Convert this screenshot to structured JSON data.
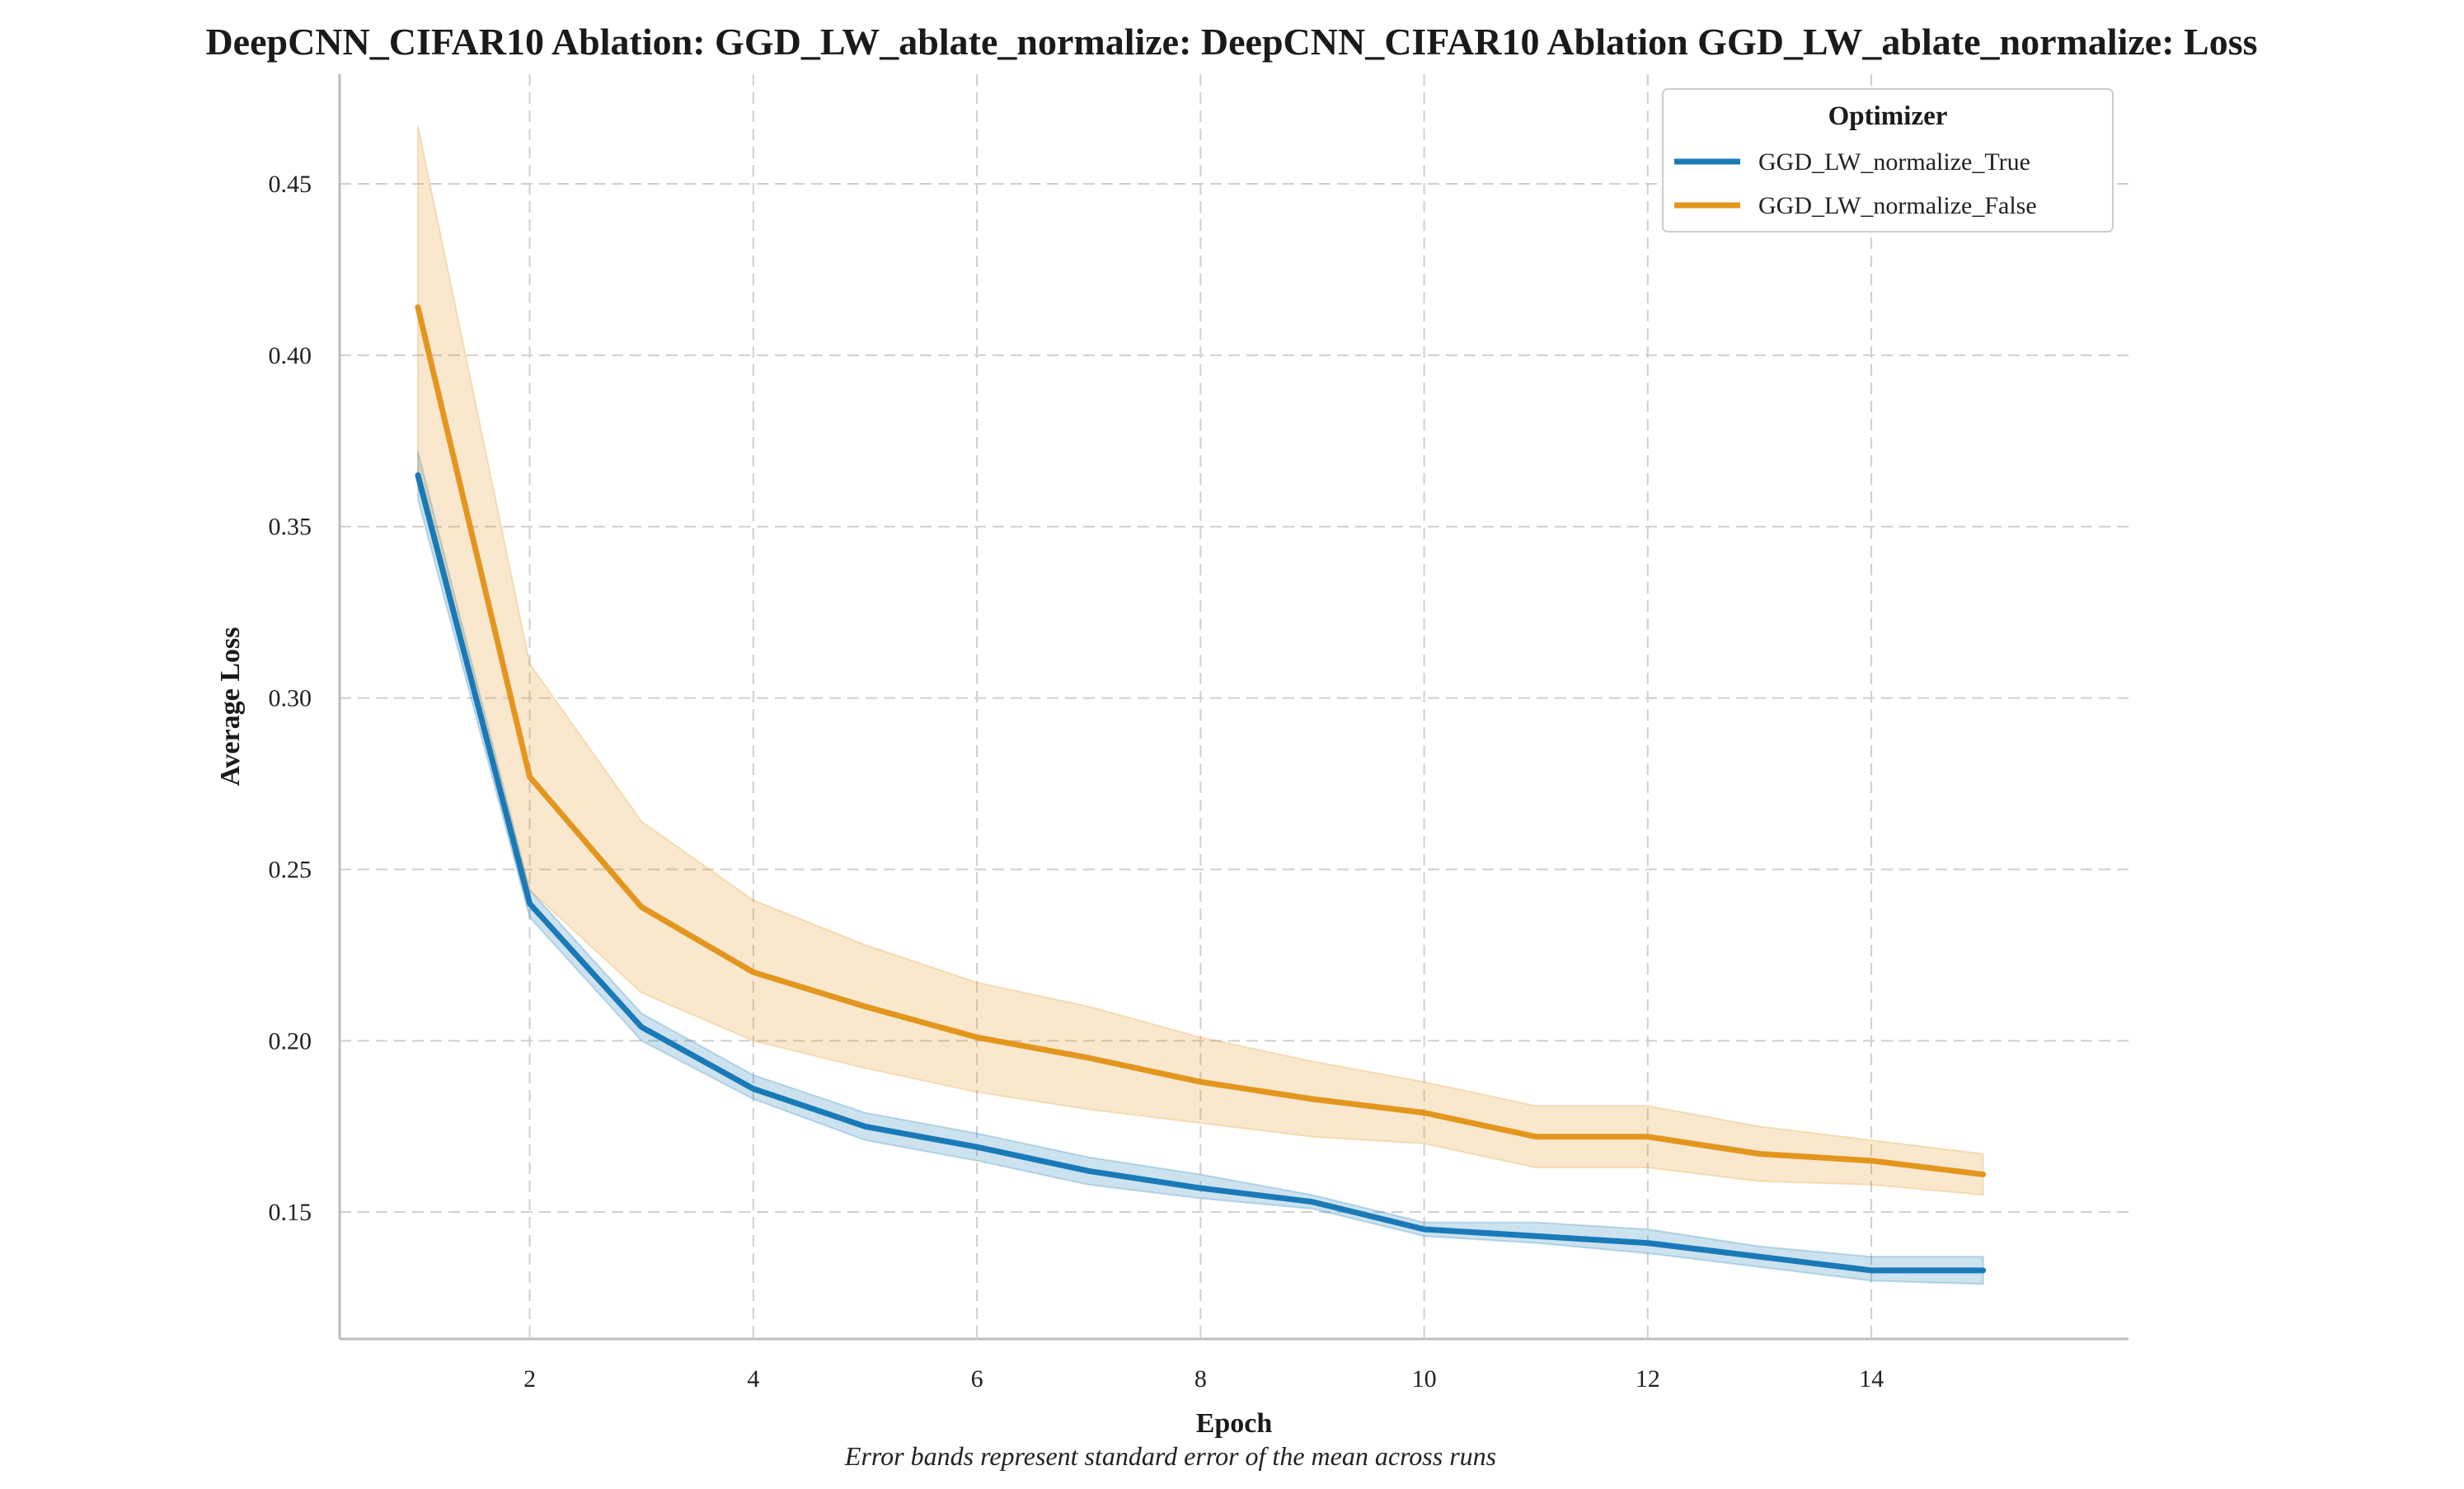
{
  "chart_data": {
    "type": "line",
    "title": "DeepCNN_CIFAR10 Ablation: GGD_LW_ablate_normalize: DeepCNN_CIFAR10 Ablation GGD_LW_ablate_normalize: Loss",
    "xlabel": "Epoch",
    "ylabel": "Average Loss",
    "caption": "Error bands represent standard error of the mean across runs",
    "xlim": [
      0.3,
      16.3
    ],
    "ylim": [
      0.113,
      0.482
    ],
    "x_ticks": [
      2,
      4,
      6,
      8,
      10,
      12,
      14
    ],
    "y_ticks": [
      0.15,
      0.2,
      0.25,
      0.3,
      0.35,
      0.4,
      0.45
    ],
    "x_tick_labels": [
      "2",
      "4",
      "6",
      "8",
      "10",
      "12",
      "14"
    ],
    "y_tick_labels": [
      "0.15",
      "0.20",
      "0.25",
      "0.30",
      "0.35",
      "0.40",
      "0.45"
    ],
    "grid": true,
    "legend": {
      "title": "Optimizer",
      "placement": "top-right"
    },
    "x": [
      1,
      2,
      3,
      4,
      5,
      6,
      7,
      8,
      9,
      10,
      11,
      12,
      13,
      14,
      15
    ],
    "series": [
      {
        "name": "GGD_LW_normalize_True",
        "color": "#1a7ab8",
        "values": [
          0.365,
          0.24,
          0.204,
          0.186,
          0.175,
          0.169,
          0.162,
          0.157,
          0.153,
          0.145,
          0.143,
          0.141,
          0.137,
          0.133,
          0.133
        ],
        "lower": [
          0.358,
          0.236,
          0.2,
          0.183,
          0.171,
          0.165,
          0.158,
          0.154,
          0.151,
          0.143,
          0.141,
          0.138,
          0.134,
          0.13,
          0.129
        ],
        "upper": [
          0.372,
          0.244,
          0.208,
          0.19,
          0.179,
          0.173,
          0.166,
          0.161,
          0.155,
          0.147,
          0.147,
          0.145,
          0.14,
          0.137,
          0.137
        ]
      },
      {
        "name": "GGD_LW_normalize_False",
        "color": "#e3961e",
        "values": [
          0.414,
          0.277,
          0.239,
          0.22,
          0.21,
          0.201,
          0.195,
          0.188,
          0.183,
          0.179,
          0.172,
          0.172,
          0.167,
          0.165,
          0.161
        ],
        "lower": [
          0.362,
          0.244,
          0.214,
          0.2,
          0.192,
          0.185,
          0.18,
          0.176,
          0.172,
          0.17,
          0.163,
          0.163,
          0.159,
          0.158,
          0.155
        ],
        "upper": [
          0.467,
          0.31,
          0.264,
          0.241,
          0.228,
          0.217,
          0.21,
          0.201,
          0.194,
          0.188,
          0.181,
          0.181,
          0.175,
          0.171,
          0.167
        ]
      }
    ]
  }
}
